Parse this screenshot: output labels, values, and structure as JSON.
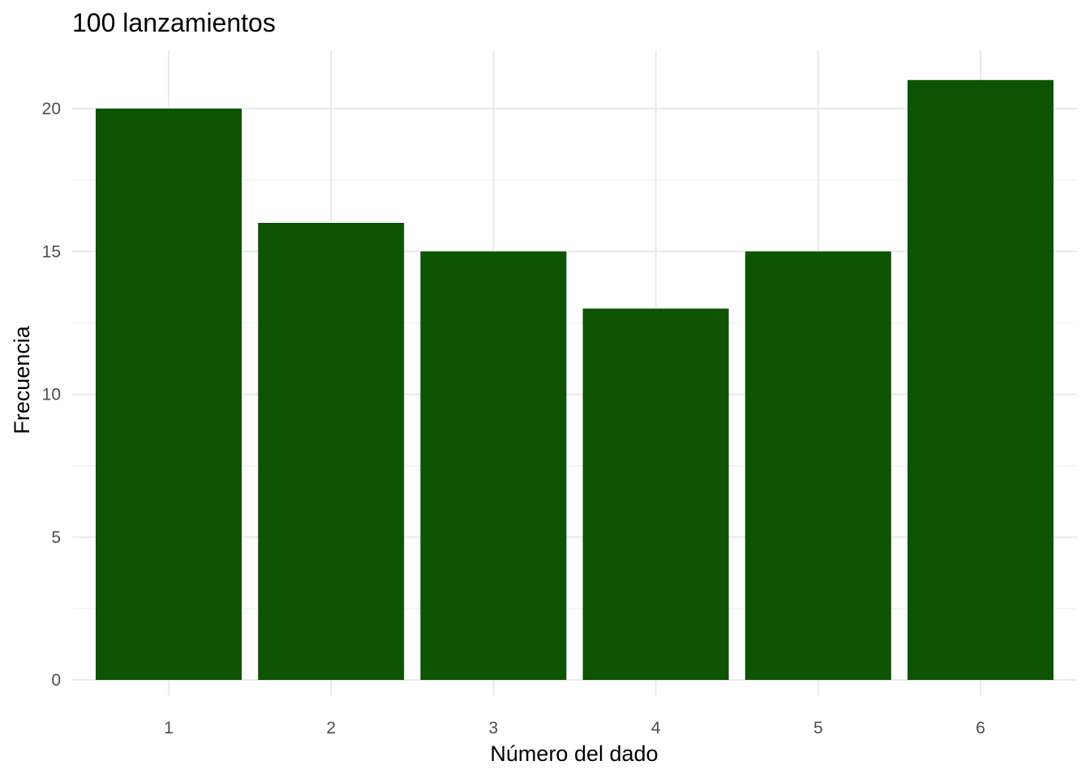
{
  "chart_data": {
    "type": "bar",
    "title": "100 lanzamientos",
    "xlabel": "Número del dado",
    "ylabel": "Frecuencia",
    "categories": [
      "1",
      "2",
      "3",
      "4",
      "5",
      "6"
    ],
    "values": [
      20,
      16,
      15,
      13,
      15,
      21
    ],
    "ylim": [
      0,
      22
    ],
    "yticks": [
      0,
      5,
      10,
      15,
      20
    ],
    "ytick_labels": [
      "0",
      "5",
      "10",
      "15",
      "20"
    ],
    "bar_color": "#0d5302",
    "grid": true,
    "legend": "none"
  }
}
